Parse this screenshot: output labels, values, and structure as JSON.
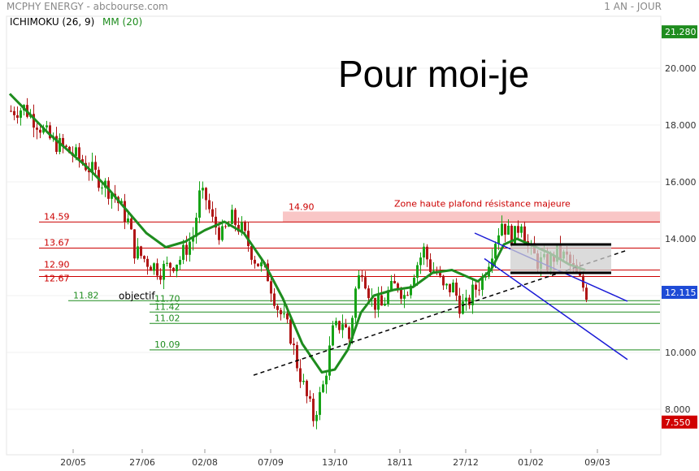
{
  "header": {
    "title": "MCPHY ENERGY - abcbourse.com",
    "period": "1 AN - JOUR",
    "ichimoku_label": "ICHIMOKU (26, 9)",
    "mm_label": "MM (20)"
  },
  "annotation": {
    "text": "Pour  moi-je"
  },
  "colors": {
    "mm_line": "#1e8c1e",
    "candle_up": "#17a317",
    "candle_down": "#b01717",
    "price_tag_current": "#1e4bd6",
    "price_tag_max": "#1e8c1e",
    "price_tag_min": "#d00000",
    "resistance_zone": "#f7b8b8",
    "support_line": "#cc0000",
    "channel": "#1a1ad6",
    "trendline": "#000000",
    "target_line": "#1e8c1e"
  },
  "chart_data": {
    "type": "candlestick",
    "x_ticks": [
      "20/05",
      "27/06",
      "02/08",
      "07/09",
      "13/10",
      "18/11",
      "27/12",
      "01/02",
      "09/03"
    ],
    "y_ticks": [
      "20.000",
      "18.000",
      "16.000",
      "14.000",
      "12.000",
      "10.000",
      "8.000"
    ],
    "ylim": [
      7.0,
      21.5
    ],
    "y_max_tag": "21.280",
    "y_current_tag": "12.115",
    "y_min_tag": "7.550",
    "resistance_zone": {
      "label": "14.90",
      "from": 14.59,
      "to": 14.9,
      "text": "Zone haute plafond résistance majeure"
    },
    "red_levels": [
      {
        "value": 14.59,
        "label": "14.59"
      },
      {
        "value": 13.67,
        "label": "13.67"
      },
      {
        "value": 12.9,
        "label": "12.90"
      },
      {
        "value": 12.67,
        "label": "12.67"
      }
    ],
    "green_levels": [
      {
        "value": 11.82,
        "label": "11.82",
        "note": "objectif"
      },
      {
        "value": 11.7,
        "label": "11.70"
      },
      {
        "value": 11.42,
        "label": "11.42"
      },
      {
        "value": 11.02,
        "label": "11.02"
      },
      {
        "value": 10.09,
        "label": "10.09"
      }
    ],
    "price_path": [
      [
        0,
        18.5
      ],
      [
        4,
        18.6
      ],
      [
        8,
        18.1
      ],
      [
        12,
        17.5
      ],
      [
        16,
        17.2
      ],
      [
        20,
        16.9
      ],
      [
        24,
        16.5
      ],
      [
        28,
        16.0
      ],
      [
        32,
        15.5
      ],
      [
        36,
        14.6
      ],
      [
        38,
        13.6
      ],
      [
        42,
        13.2
      ],
      [
        46,
        12.9
      ],
      [
        48,
        13.0
      ],
      [
        52,
        13.3
      ],
      [
        56,
        14.1
      ],
      [
        58,
        15.5
      ],
      [
        60,
        15.4
      ],
      [
        62,
        14.6
      ],
      [
        65,
        14.1
      ],
      [
        68,
        14.7
      ],
      [
        71,
        14.3
      ],
      [
        75,
        13.3
      ],
      [
        79,
        12.7
      ],
      [
        82,
        11.6
      ],
      [
        86,
        10.6
      ],
      [
        88,
        9.6
      ],
      [
        91,
        8.4
      ],
      [
        93,
        7.7
      ],
      [
        96,
        8.8
      ],
      [
        99,
        10.7
      ],
      [
        102,
        11.1
      ],
      [
        104,
        10.5
      ],
      [
        106,
        12.2
      ],
      [
        108,
        13.0
      ],
      [
        111,
        11.8
      ],
      [
        114,
        11.6
      ],
      [
        116,
        12.1
      ],
      [
        119,
        12.4
      ],
      [
        121,
        12.0
      ],
      [
        124,
        12.9
      ],
      [
        127,
        13.6
      ],
      [
        129,
        13.0
      ],
      [
        131,
        12.8
      ],
      [
        133,
        12.2
      ],
      [
        136,
        12.3
      ],
      [
        138,
        11.7
      ],
      [
        140,
        11.6
      ],
      [
        142,
        12.1
      ],
      [
        145,
        12.6
      ],
      [
        147,
        13.3
      ],
      [
        149,
        14.0
      ],
      [
        151,
        14.6
      ],
      [
        153,
        14.2
      ],
      [
        155,
        14.1
      ],
      [
        157,
        14.7
      ],
      [
        159,
        13.7
      ],
      [
        162,
        13.2
      ],
      [
        165,
        13.1
      ],
      [
        168,
        13.5
      ],
      [
        171,
        13.3
      ],
      [
        173,
        12.9
      ],
      [
        175,
        12.5
      ],
      [
        177,
        12.1
      ]
    ],
    "mm_path": [
      [
        0,
        19.1
      ],
      [
        6,
        18.4
      ],
      [
        12,
        17.7
      ],
      [
        18,
        17.1
      ],
      [
        24,
        16.5
      ],
      [
        30,
        15.8
      ],
      [
        36,
        15.0
      ],
      [
        42,
        14.2
      ],
      [
        48,
        13.7
      ],
      [
        54,
        13.9
      ],
      [
        60,
        14.3
      ],
      [
        66,
        14.6
      ],
      [
        72,
        14.2
      ],
      [
        78,
        13.2
      ],
      [
        84,
        11.9
      ],
      [
        90,
        10.3
      ],
      [
        96,
        9.3
      ],
      [
        100,
        9.4
      ],
      [
        104,
        10.1
      ],
      [
        108,
        11.4
      ],
      [
        112,
        12.0
      ],
      [
        118,
        12.2
      ],
      [
        124,
        12.3
      ],
      [
        130,
        12.8
      ],
      [
        136,
        12.9
      ],
      [
        140,
        12.7
      ],
      [
        144,
        12.5
      ],
      [
        148,
        12.9
      ],
      [
        152,
        13.8
      ],
      [
        156,
        14.0
      ],
      [
        160,
        13.8
      ],
      [
        166,
        13.5
      ],
      [
        172,
        13.1
      ],
      [
        177,
        12.9
      ]
    ],
    "trendline": {
      "from": [
        75,
        9.2
      ],
      "to": [
        190,
        13.6
      ]
    },
    "channel": {
      "upper": {
        "from": [
          143,
          14.2
        ],
        "to": [
          190,
          11.8
        ]
      },
      "lower": {
        "from": [
          146,
          13.3
        ],
        "to": [
          190,
          9.75
        ]
      }
    },
    "consolidation_box": {
      "from_idx": 154,
      "to_idx": 185,
      "bottom": 12.8,
      "top": 13.8
    }
  }
}
